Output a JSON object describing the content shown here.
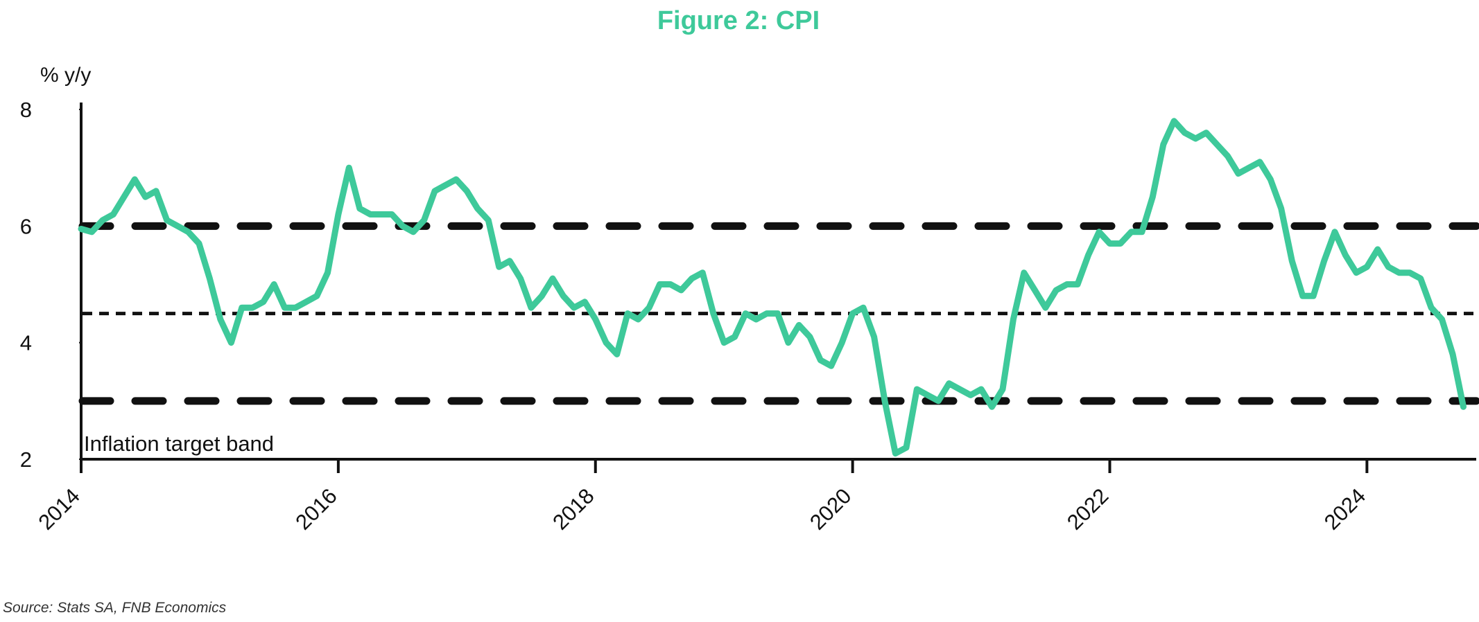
{
  "chart_data": {
    "type": "line",
    "title": "Figure 2: CPI",
    "y_axis_label": "% y/y",
    "source": "Source: Stats SA, FNB Economics",
    "annotation": "Inflation target band",
    "xlim": [
      2014,
      2024.85
    ],
    "xticks": [
      2014,
      2016,
      2018,
      2020,
      2022,
      2024
    ],
    "ylim": [
      2,
      8
    ],
    "yticks": [
      2,
      4,
      6,
      8
    ],
    "grid": false,
    "reference_lines": [
      {
        "value": 6,
        "style": "dashed"
      },
      {
        "value": 4.5,
        "style": "dotted"
      },
      {
        "value": 3,
        "style": "dashed"
      }
    ],
    "series": [
      {
        "name": "CPI",
        "color": "#3ec99a",
        "x": [
          2014.0,
          2014.083,
          2014.167,
          2014.25,
          2014.333,
          2014.417,
          2014.5,
          2014.583,
          2014.667,
          2014.75,
          2014.833,
          2014.917,
          2015.0,
          2015.083,
          2015.167,
          2015.25,
          2015.333,
          2015.417,
          2015.5,
          2015.583,
          2015.667,
          2015.75,
          2015.833,
          2015.917,
          2016.0,
          2016.083,
          2016.167,
          2016.25,
          2016.333,
          2016.417,
          2016.5,
          2016.583,
          2016.667,
          2016.75,
          2016.833,
          2016.917,
          2017.0,
          2017.083,
          2017.167,
          2017.25,
          2017.333,
          2017.417,
          2017.5,
          2017.583,
          2017.667,
          2017.75,
          2017.833,
          2017.917,
          2018.0,
          2018.083,
          2018.167,
          2018.25,
          2018.333,
          2018.417,
          2018.5,
          2018.583,
          2018.667,
          2018.75,
          2018.833,
          2018.917,
          2019.0,
          2019.083,
          2019.167,
          2019.25,
          2019.333,
          2019.417,
          2019.5,
          2019.583,
          2019.667,
          2019.75,
          2019.833,
          2019.917,
          2020.0,
          2020.083,
          2020.167,
          2020.25,
          2020.333,
          2020.417,
          2020.5,
          2020.583,
          2020.667,
          2020.75,
          2020.833,
          2020.917,
          2021.0,
          2021.083,
          2021.167,
          2021.25,
          2021.333,
          2021.417,
          2021.5,
          2021.583,
          2021.667,
          2021.75,
          2021.833,
          2021.917,
          2022.0,
          2022.083,
          2022.167,
          2022.25,
          2022.333,
          2022.417,
          2022.5,
          2022.583,
          2022.667,
          2022.75,
          2022.833,
          2022.917,
          2023.0,
          2023.083,
          2023.167,
          2023.25,
          2023.333,
          2023.417,
          2023.5,
          2023.583,
          2023.667,
          2023.75,
          2023.833,
          2023.917,
          2024.0,
          2024.083,
          2024.167,
          2024.25,
          2024.333,
          2024.417,
          2024.5,
          2024.583,
          2024.667,
          2024.75
        ],
        "values": [
          5.95,
          5.9,
          6.1,
          6.2,
          6.5,
          6.8,
          6.5,
          6.6,
          6.1,
          6.0,
          5.9,
          5.7,
          5.1,
          4.4,
          4.0,
          4.6,
          4.6,
          4.7,
          5.0,
          4.6,
          4.6,
          4.7,
          4.8,
          5.2,
          6.2,
          7.0,
          6.3,
          6.2,
          6.2,
          6.2,
          6.0,
          5.9,
          6.1,
          6.6,
          6.7,
          6.8,
          6.6,
          6.3,
          6.1,
          5.3,
          5.4,
          5.1,
          4.6,
          4.8,
          5.1,
          4.8,
          4.6,
          4.7,
          4.4,
          4.0,
          3.8,
          4.5,
          4.4,
          4.6,
          5.0,
          5.0,
          4.9,
          5.1,
          5.2,
          4.5,
          4.0,
          4.1,
          4.5,
          4.4,
          4.5,
          4.5,
          4.0,
          4.3,
          4.1,
          3.7,
          3.6,
          4.0,
          4.5,
          4.6,
          4.1,
          3.0,
          2.1,
          2.2,
          3.2,
          3.1,
          3.0,
          3.3,
          3.2,
          3.1,
          3.2,
          2.9,
          3.2,
          4.4,
          5.2,
          4.9,
          4.6,
          4.9,
          5.0,
          5.0,
          5.5,
          5.9,
          5.7,
          5.7,
          5.9,
          5.9,
          6.5,
          7.4,
          7.8,
          7.6,
          7.5,
          7.6,
          7.4,
          7.2,
          6.9,
          7.0,
          7.1,
          6.8,
          6.3,
          5.4,
          4.8,
          4.8,
          5.4,
          5.9,
          5.5,
          5.2,
          5.3,
          5.6,
          5.3,
          5.2,
          5.2,
          5.1,
          4.6,
          4.4,
          3.8,
          2.9
        ]
      }
    ]
  }
}
